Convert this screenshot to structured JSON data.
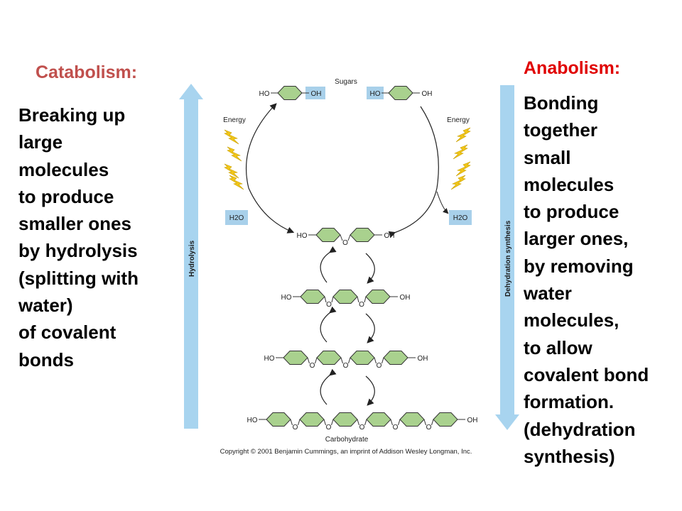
{
  "catabolism": {
    "title": "Catabolism:",
    "lines": [
      "Breaking up",
      "large",
      "molecules",
      "to produce",
      "smaller ones",
      "by hydrolysis",
      "(splitting with",
      "water)",
      "of covalent",
      "bonds"
    ]
  },
  "anabolism": {
    "title": "Anabolism:",
    "lines": [
      "Bonding",
      "together",
      "small",
      "molecules",
      "to produce",
      "larger ones,",
      "by removing",
      "water",
      "molecules,",
      "to allow",
      "covalent bond",
      "formation.",
      "(dehydration",
      "synthesis)"
    ]
  },
  "diagram": {
    "sugars_label": "Sugars",
    "carbohydrate_label": "Carbohydrate",
    "energy_label": "Energy",
    "water_label": "H2O",
    "ho": "HO",
    "oh": "OH",
    "o": "O",
    "hydrolysis_label": "Hydrolysis",
    "dehydration_label": "Dehydration synthesis",
    "copyright": "Copyright © 2001 Benjamin Cummings, an imprint of Addison Wesley Longman, Inc.",
    "colors": {
      "ring": "#a9d18e",
      "water_box": "#a8d0ea",
      "bolt": "#f2c618",
      "big_arrow": "#a8d4ef"
    }
  }
}
